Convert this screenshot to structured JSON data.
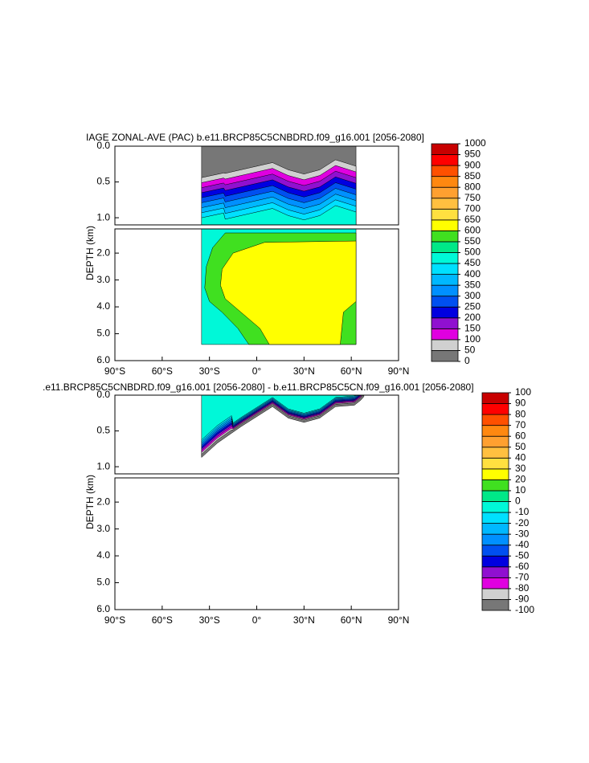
{
  "chart_data": [
    {
      "type": "contour",
      "title": "IAGE ZONAL-AVE (PAC) b.e11.BRCP85C5CNBDRD.f09_g16.001 [2056-2080]",
      "ylabel": "DEPTH (km)",
      "xlim": [
        -90,
        90
      ],
      "xticks": [
        {
          "value": -90,
          "label": "90°S"
        },
        {
          "value": -60,
          "label": "60°S"
        },
        {
          "value": -30,
          "label": "30°S"
        },
        {
          "value": 0,
          "label": "0°"
        },
        {
          "value": 30,
          "label": "30°N"
        },
        {
          "value": 60,
          "label": "60°N"
        },
        {
          "value": 90,
          "label": "90°N"
        }
      ],
      "y_inverted": true,
      "panels": [
        {
          "ylim": [
            0,
            1.1
          ],
          "yticks": [
            {
              "value": 0,
              "label": "0.0"
            },
            0.5,
            {
              "value": 1,
              "label": "1.0"
            }
          ]
        },
        {
          "ylim": [
            1.1,
            6
          ],
          "yticks": [
            {
              "value": 2,
              "label": "2.0"
            },
            {
              "value": 3,
              "label": "3.0"
            },
            {
              "value": 4,
              "label": "4.0"
            },
            {
              "value": 5,
              "label": "5.0"
            },
            {
              "value": 6,
              "label": "6.0"
            }
          ]
        }
      ],
      "colorbar": {
        "levels": [
          0,
          50,
          100,
          150,
          200,
          250,
          300,
          350,
          400,
          450,
          500,
          550,
          600,
          650,
          700,
          750,
          800,
          850,
          900,
          950,
          1000
        ],
        "colors": [
          "#777777",
          "#d0d0d0",
          "#e000e0",
          "#9010d0",
          "#0000e0",
          "#0050f0",
          "#0090ff",
          "#00b8ff",
          "#00e0ff",
          "#00f8d8",
          "#00e888",
          "#40e020",
          "#ffff00",
          "#ffe040",
          "#ffc040",
          "#ffa030",
          "#ff8810",
          "#ff5000",
          "#ff0000",
          "#c80000"
        ]
      }
    },
    {
      "type": "contour",
      "title": ".e11.BRCP85C5CNBDRD.f09_g16.001 [2056-2080] - b.e11.BRCP85C5CN.f09_g16.001 [2056-2080]",
      "ylabel": "DEPTH (km)",
      "xlim": [
        -90,
        90
      ],
      "xticks": [
        {
          "value": -90,
          "label": "90°S"
        },
        {
          "value": -60,
          "label": "60°S"
        },
        {
          "value": -30,
          "label": "30°S"
        },
        {
          "value": 0,
          "label": "0°"
        },
        {
          "value": 30,
          "label": "30°N"
        },
        {
          "value": 60,
          "label": "60°N"
        },
        {
          "value": 90,
          "label": "90°N"
        }
      ],
      "y_inverted": true,
      "panels": [
        {
          "ylim": [
            0,
            1.1
          ],
          "yticks": [
            {
              "value": 0,
              "label": "0.0"
            },
            0.5,
            {
              "value": 1,
              "label": "1.0"
            }
          ]
        },
        {
          "ylim": [
            1.1,
            6
          ],
          "yticks": [
            {
              "value": 2,
              "label": "2.0"
            },
            {
              "value": 3,
              "label": "3.0"
            },
            {
              "value": 4,
              "label": "4.0"
            },
            {
              "value": 5,
              "label": "5.0"
            },
            {
              "value": 6,
              "label": "6.0"
            }
          ]
        }
      ],
      "colorbar": {
        "levels": [
          -100,
          -90,
          -80,
          -70,
          -60,
          -50,
          -40,
          -30,
          -20,
          -10,
          0,
          10,
          20,
          30,
          40,
          50,
          60,
          70,
          80,
          90,
          100
        ],
        "colors": [
          "#777777",
          "#d0d0d0",
          "#e000e0",
          "#9010d0",
          "#0000e0",
          "#0050f0",
          "#0090ff",
          "#00b8ff",
          "#00e0ff",
          "#00f8d8",
          "#00e888",
          "#40e020",
          "#ffff00",
          "#ffe040",
          "#ffc040",
          "#ffa030",
          "#ff8810",
          "#ff5000",
          "#ff0000",
          "#c80000"
        ]
      }
    }
  ]
}
